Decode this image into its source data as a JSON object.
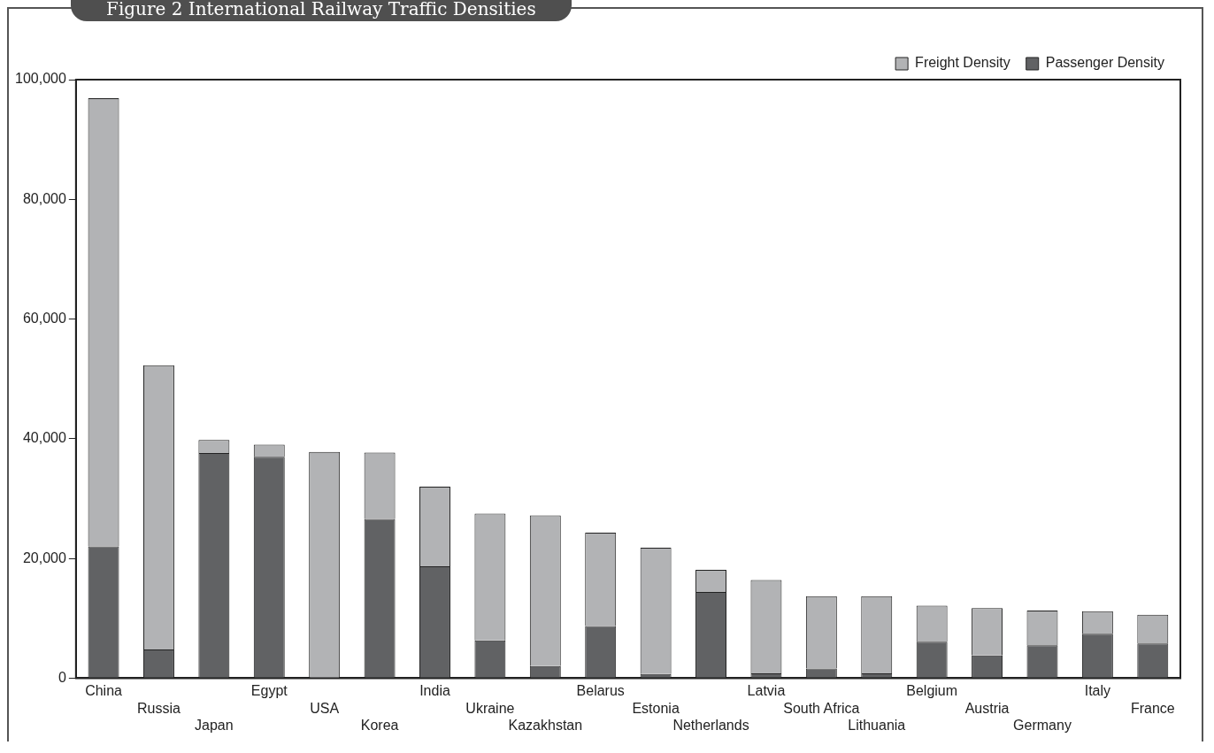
{
  "chart_data": {
    "type": "bar",
    "title": "Figure 2  International Railway Traffic Densities",
    "stacked": true,
    "categories": [
      "China",
      "Russia",
      "Japan",
      "Egypt",
      "USA",
      "Korea",
      "India",
      "Ukraine",
      "Kazakhstan",
      "Belarus",
      "Estonia",
      "Netherlands",
      "Latvia",
      "South Africa",
      "Lithuania",
      "Belgium",
      "Austria",
      "Germany",
      "Italy",
      "France"
    ],
    "series": [
      {
        "name": "Passenger Density",
        "color": "#616264",
        "values": [
          22000,
          4800,
          37600,
          37000,
          0,
          26600,
          18700,
          6300,
          2000,
          8700,
          700,
          14400,
          800,
          1600,
          800,
          6100,
          3800,
          5500,
          7400,
          5800
        ]
      },
      {
        "name": "Freight Density",
        "color": "#b2b3b5",
        "values": [
          74900,
          47500,
          2200,
          2000,
          37800,
          11100,
          13300,
          21200,
          25200,
          15600,
          21100,
          3700,
          15600,
          12100,
          12900,
          6000,
          7900,
          5800,
          3800,
          4800
        ]
      }
    ],
    "ylim": [
      0,
      100000
    ],
    "yticks": [
      0,
      {
        "value": 20000,
        "label": "20,000"
      },
      {
        "value": 40000,
        "label": "40,000"
      },
      {
        "value": 60000,
        "label": "60,000"
      },
      {
        "value": 80000,
        "label": "80,000"
      },
      {
        "value": 100000,
        "label": "100,000"
      }
    ],
    "grid": false,
    "legend": "top right"
  }
}
